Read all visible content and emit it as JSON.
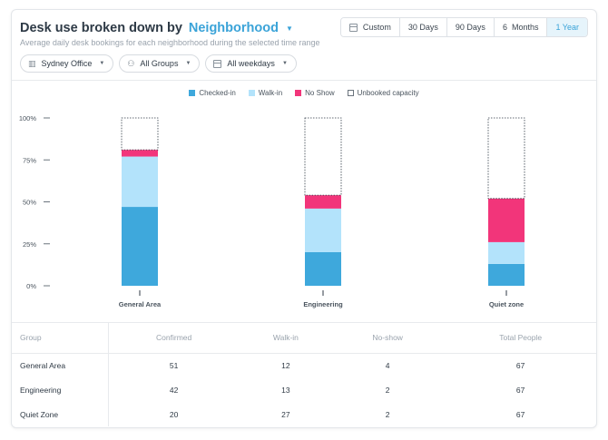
{
  "header": {
    "title": "Desk use broken down by",
    "group_by": "Neighborhood",
    "subtitle": "Average daily desk bookings for each neighborhood during the selected time range"
  },
  "time_ranges": [
    {
      "label": "Custom",
      "active": false,
      "icon": "calendar-icon"
    },
    {
      "label": "30 Days",
      "active": false
    },
    {
      "label": "90 Days",
      "active": false
    },
    {
      "label": "6  Months",
      "active": false
    },
    {
      "label": "1 Year",
      "active": true
    }
  ],
  "filters": {
    "office": {
      "label": "Sydney Office",
      "icon": "building-icon"
    },
    "groups": {
      "label": "All Groups",
      "icon": "people-icon"
    },
    "weekdays": {
      "label": "All weekdays",
      "icon": "calendar-icon"
    }
  },
  "colors": {
    "checked_in": "#3ea8dc",
    "walk_in": "#b3e3fb",
    "no_show": "#f2357a",
    "unbooked": "#ffffff",
    "accent": "#3aa3d8"
  },
  "legend": {
    "checked_in": "Checked-in",
    "walk_in": "Walk-in",
    "no_show": "No Show",
    "unbooked": "Unbooked capacity"
  },
  "chart_data": {
    "type": "bar",
    "stacked": true,
    "categories": [
      "General Area",
      "Engineering",
      "Quiet zone"
    ],
    "series": [
      {
        "name": "Checked-in",
        "values": [
          47,
          20,
          13
        ]
      },
      {
        "name": "Walk-in",
        "values": [
          30,
          26,
          13
        ]
      },
      {
        "name": "No Show",
        "values": [
          4,
          8,
          26
        ]
      },
      {
        "name": "Unbooked capacity",
        "values": [
          19,
          46,
          48
        ]
      }
    ],
    "ylim": [
      0,
      100
    ],
    "yticks": [
      "0%",
      "25%",
      "50%",
      "75%",
      "100%"
    ],
    "ytick_values": [
      0,
      25,
      50,
      75,
      100
    ],
    "legend_position": "top-center"
  },
  "table": {
    "headers": [
      "Group",
      "Confirmed",
      "Walk-in",
      "No-show",
      "Total People"
    ],
    "rows": [
      [
        "General Area",
        "51",
        "12",
        "4",
        "67"
      ],
      [
        "Engineering",
        "42",
        "13",
        "2",
        "67"
      ],
      [
        "Quiet Zone",
        "20",
        "27",
        "2",
        "67"
      ]
    ]
  }
}
